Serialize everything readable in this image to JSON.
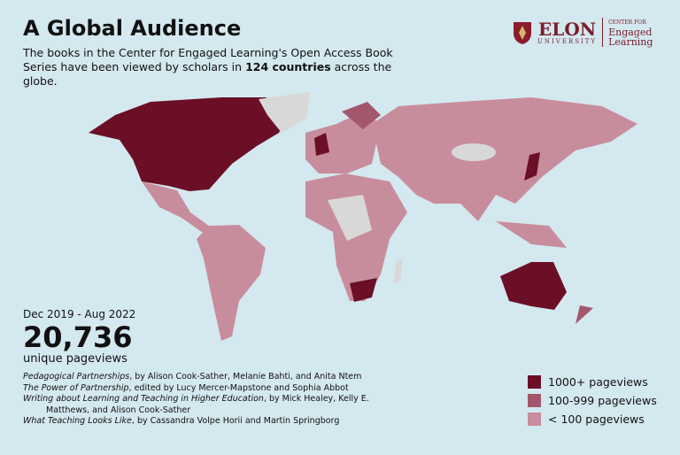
{
  "header": {
    "title": "A Global Audience",
    "subtitle": {
      "before": "The books in the Center for Engaged Learning's Open Access Book Series have been viewed by scholars in",
      "highlight": "124 countries",
      "after": "across the globe."
    }
  },
  "logo": {
    "name": "ELON",
    "sub": "UNIVERSITY",
    "center_top": "CENTER FOR",
    "center_line1": "Engaged",
    "center_line2": "Learning"
  },
  "stats": {
    "period": "Dec 2019 - Aug 2022",
    "total": "20,736",
    "label": "unique pageviews"
  },
  "references": [
    {
      "title": "Pedagogical Partnerships",
      "rest": ", by Alison Cook-Sather, Melanie Bahti, and Anita Ntem"
    },
    {
      "title": "The Power of Partnership",
      "rest": ", edited by Lucy Mercer-Mapstone and Sophia Abbot"
    },
    {
      "title": "Writing about Learning and Teaching in Higher Education",
      "rest": ", by Mick Healey, Kelly E. Matthews, and Alison Cook-Sather"
    },
    {
      "title": "What Teaching Looks Like",
      "rest": ", by Cassandra Volpe Horii and Martin Springborg"
    }
  ],
  "legend": [
    {
      "label": "1000+ pageviews",
      "color": "#6b0f27"
    },
    {
      "label": "100-999 pageviews",
      "color": "#a2576d"
    },
    {
      "label": "< 100 pageviews",
      "color": "#c88d9d"
    }
  ]
}
